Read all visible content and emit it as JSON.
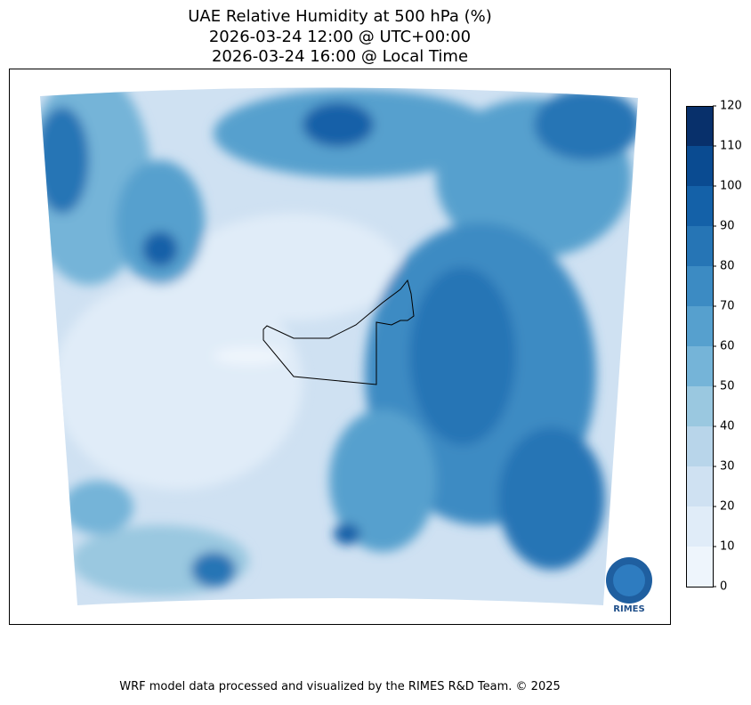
{
  "title": [
    "UAE Relative Humidity at 500 hPa (%)",
    "2026-03-24 12:00 @ UTC+00:00",
    "2026-03-24 16:00 @ Local Time"
  ],
  "colorbar": {
    "lim": [
      0,
      120
    ],
    "ticks": [
      0,
      10,
      20,
      30,
      40,
      50,
      60,
      70,
      80,
      90,
      100,
      110,
      120
    ],
    "colors": [
      "#eef5fc",
      "#e0ecf8",
      "#cfe1f2",
      "#b8d5ea",
      "#9ac8e0",
      "#75b4d8",
      "#56a0ce",
      "#3c8bc3",
      "#2675b5",
      "#1461a8",
      "#0a4b91",
      "#08306b"
    ]
  },
  "logo": "RIMES",
  "footer": "WRF model data processed and visualized by the RIMES R&D Team. © 2025"
}
